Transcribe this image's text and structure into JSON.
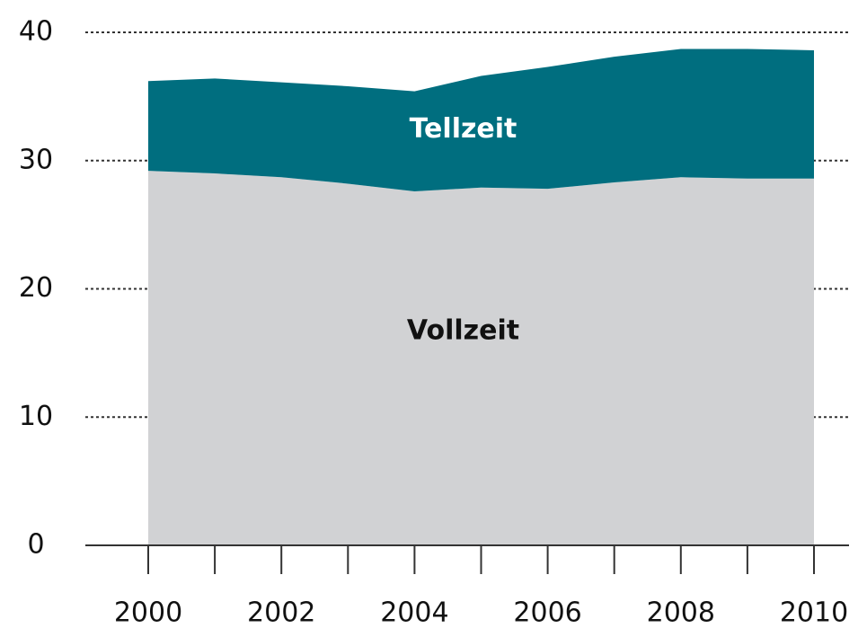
{
  "chart_data": {
    "type": "area",
    "stacked": true,
    "x": [
      2000,
      2001,
      2002,
      2003,
      2004,
      2005,
      2006,
      2007,
      2008,
      2009,
      2010
    ],
    "series": [
      {
        "name": "Vollzeit",
        "color": "#d1d2d4",
        "label_color": "#111111",
        "values": [
          29.2,
          29.0,
          28.7,
          28.2,
          27.6,
          27.9,
          27.8,
          28.3,
          28.7,
          28.6,
          28.6
        ]
      },
      {
        "name": "Tellzeit",
        "color": "#006e7f",
        "label_color": "#ffffff",
        "values": [
          7.0,
          7.4,
          7.4,
          7.6,
          7.8,
          8.7,
          9.5,
          9.8,
          10.0,
          10.1,
          10.0
        ]
      }
    ],
    "xlim": [
      2000,
      2010
    ],
    "xticks": [
      2000,
      2002,
      2004,
      2006,
      2008,
      2010
    ],
    "xminorticks": [
      2001,
      2003,
      2005,
      2007,
      2009
    ],
    "ylim": [
      0,
      40
    ],
    "yticks": [
      0,
      10,
      20,
      30,
      40
    ],
    "grid": true
  }
}
